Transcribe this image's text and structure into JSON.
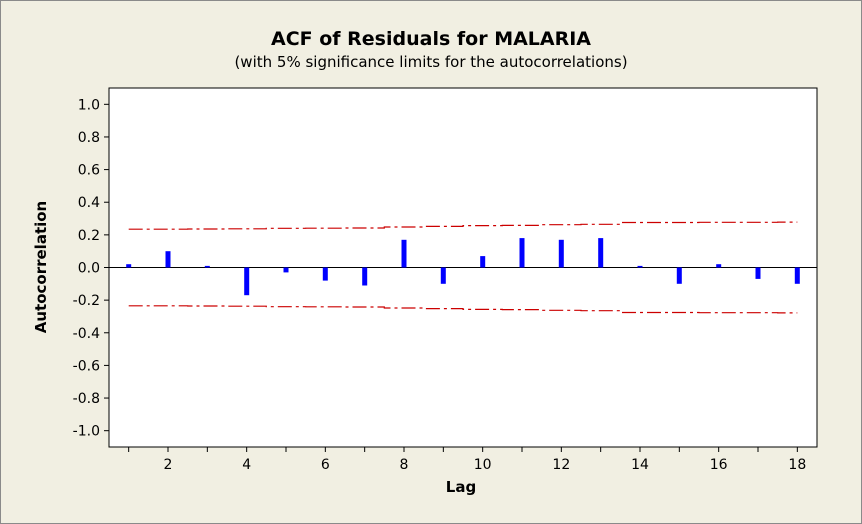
{
  "chart_data": {
    "type": "bar",
    "title": "ACF of Residuals for MALARIA",
    "subtitle": "(with 5% significance limits for the autocorrelations)",
    "xlabel": "Lag",
    "ylabel": "Autocorrelation",
    "xlim": [
      0.5,
      18.5
    ],
    "ylim": [
      -1.1,
      1.1
    ],
    "xticks": [
      2,
      4,
      6,
      8,
      10,
      12,
      14,
      16,
      18
    ],
    "yticks": [
      1.0,
      0.8,
      0.6,
      0.4,
      0.2,
      0.0,
      -0.2,
      -0.4,
      -0.6,
      -0.8,
      -1.0
    ],
    "ytick_labels": [
      "1.0",
      "0.8",
      "0.6",
      "0.4",
      "0.2",
      "0.0",
      "-0.2",
      "-0.4",
      "-0.6",
      "-0.8",
      "-1.0"
    ],
    "lags": [
      1,
      2,
      3,
      4,
      5,
      6,
      7,
      8,
      9,
      10,
      11,
      12,
      13,
      14,
      15,
      16,
      17,
      18
    ],
    "acf": [
      0.02,
      0.1,
      0.01,
      -0.17,
      -0.03,
      -0.08,
      -0.11,
      0.17,
      -0.1,
      0.07,
      0.18,
      0.17,
      0.18,
      0.01,
      -0.1,
      0.02,
      -0.07,
      -0.1
    ],
    "upper_limit": [
      0.235,
      0.235,
      0.236,
      0.237,
      0.24,
      0.241,
      0.242,
      0.248,
      0.252,
      0.257,
      0.258,
      0.262,
      0.265,
      0.276,
      0.276,
      0.277,
      0.277,
      0.278
    ],
    "lower_limit": [
      -0.235,
      -0.235,
      -0.236,
      -0.237,
      -0.24,
      -0.241,
      -0.242,
      -0.248,
      -0.252,
      -0.257,
      -0.258,
      -0.262,
      -0.265,
      -0.276,
      -0.276,
      -0.277,
      -0.277,
      -0.278
    ],
    "colors": {
      "bars": "#0000ff",
      "limits": "#cc0000",
      "zero_line": "#000000"
    },
    "grid": false
  }
}
